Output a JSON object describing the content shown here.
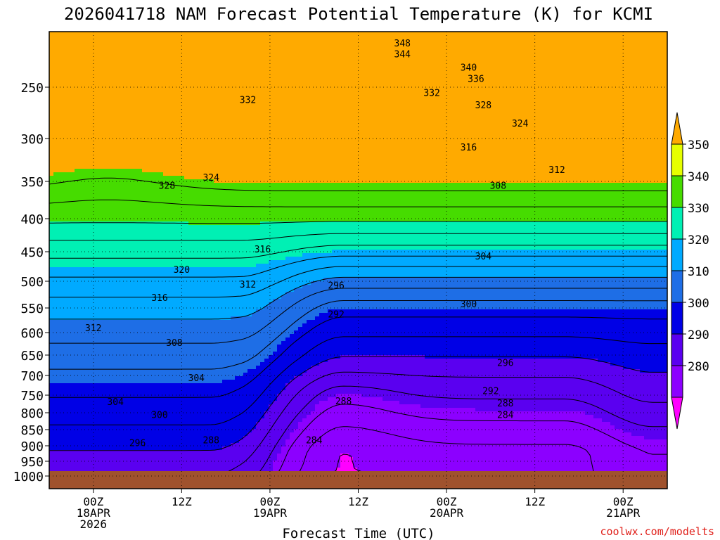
{
  "chart_data": {
    "type": "heatmap",
    "title": "2026041718 NAM Forecast Potential Temperature (K) for KCMI",
    "xlabel": "Forecast Time (UTC)",
    "ylabel": "",
    "watermark": "coolwx.com/modelts",
    "ylim": [
      1000,
      200
    ],
    "y_ticks": [
      1000,
      950,
      900,
      850,
      800,
      750,
      700,
      650,
      600,
      550,
      500,
      450,
      400,
      350,
      300,
      250
    ],
    "x_ticks": [
      {
        "hour": 6,
        "line1": "00Z",
        "line2": "18APR",
        "line3": "2026"
      },
      {
        "hour": 18,
        "line1": "12Z",
        "line2": "",
        "line3": ""
      },
      {
        "hour": 30,
        "line1": "00Z",
        "line2": "19APR",
        "line3": ""
      },
      {
        "hour": 42,
        "line1": "12Z",
        "line2": "",
        "line3": ""
      },
      {
        "hour": 54,
        "line1": "00Z",
        "line2": "20APR",
        "line3": ""
      },
      {
        "hour": 66,
        "line1": "12Z",
        "line2": "",
        "line3": ""
      },
      {
        "hour": 78,
        "line1": "00Z",
        "line2": "21APR",
        "line3": ""
      }
    ],
    "x_range_hours": [
      0,
      84
    ],
    "colorbar": {
      "levels": [
        280,
        290,
        300,
        310,
        320,
        330,
        340,
        350
      ],
      "colors": [
        "#ff00ff",
        "#8c00ff",
        "#5a00f0",
        "#0000e6",
        "#1e6ee6",
        "#00aaff",
        "#00f0b4",
        "#46dc00",
        "#e6ff00",
        "#ffaa00"
      ]
    },
    "contour_levels": [
      280,
      284,
      288,
      292,
      296,
      300,
      304,
      308,
      312,
      316,
      320,
      324,
      328,
      332,
      336,
      340,
      344,
      348
    ],
    "labelled_contours": [
      {
        "value": "348",
        "hour": 48,
        "p": 210
      },
      {
        "value": "344",
        "hour": 48,
        "p": 220
      },
      {
        "value": "340",
        "hour": 57,
        "p": 232
      },
      {
        "value": "336",
        "hour": 58,
        "p": 242
      },
      {
        "value": "332",
        "hour": 52,
        "p": 255
      },
      {
        "value": "332",
        "hour": 27,
        "p": 262
      },
      {
        "value": "328",
        "hour": 59,
        "p": 267
      },
      {
        "value": "324",
        "hour": 64,
        "p": 285
      },
      {
        "value": "316",
        "hour": 57,
        "p": 310
      },
      {
        "value": "312",
        "hour": 69,
        "p": 336
      },
      {
        "value": "308",
        "hour": 61,
        "p": 355
      },
      {
        "value": "324",
        "hour": 22,
        "p": 345
      },
      {
        "value": "328",
        "hour": 16,
        "p": 355
      },
      {
        "value": "316",
        "hour": 29,
        "p": 446
      },
      {
        "value": "304",
        "hour": 59,
        "p": 457
      },
      {
        "value": "320",
        "hour": 18,
        "p": 480
      },
      {
        "value": "312",
        "hour": 27,
        "p": 505
      },
      {
        "value": "296",
        "hour": 39,
        "p": 507
      },
      {
        "value": "316",
        "hour": 15,
        "p": 530
      },
      {
        "value": "300",
        "hour": 57,
        "p": 542
      },
      {
        "value": "292",
        "hour": 39,
        "p": 562
      },
      {
        "value": "312",
        "hour": 6,
        "p": 590
      },
      {
        "value": "308",
        "hour": 17,
        "p": 622
      },
      {
        "value": "296",
        "hour": 62,
        "p": 668
      },
      {
        "value": "304",
        "hour": 20,
        "p": 705
      },
      {
        "value": "292",
        "hour": 60,
        "p": 738
      },
      {
        "value": "304",
        "hour": 9,
        "p": 768
      },
      {
        "value": "288",
        "hour": 40,
        "p": 766
      },
      {
        "value": "288",
        "hour": 62,
        "p": 772
      },
      {
        "value": "300",
        "hour": 15,
        "p": 805
      },
      {
        "value": "284",
        "hour": 62,
        "p": 805
      },
      {
        "value": "288",
        "hour": 22,
        "p": 882
      },
      {
        "value": "296",
        "hour": 12,
        "p": 890
      },
      {
        "value": "284",
        "hour": 36,
        "p": 882
      }
    ],
    "surface_pressure_hpa": 990
  }
}
